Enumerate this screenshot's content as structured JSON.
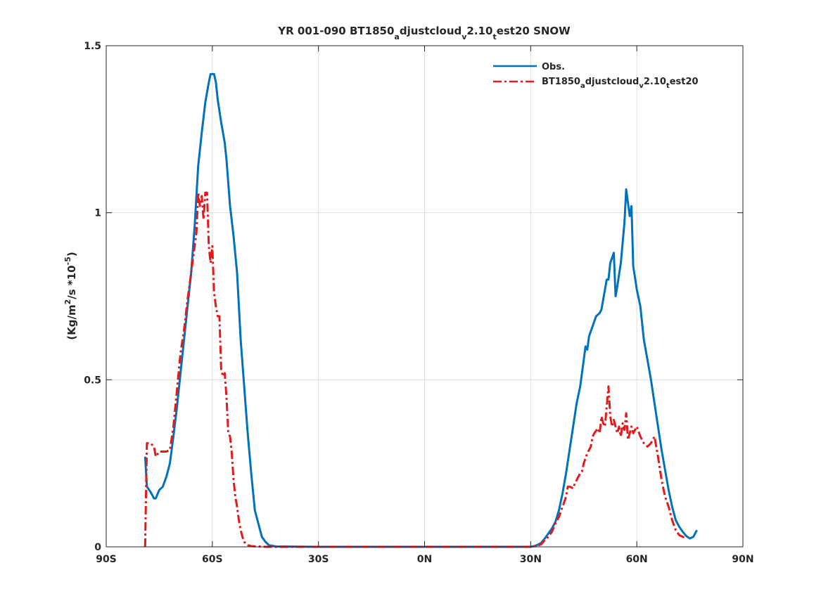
{
  "chart_data": {
    "type": "line",
    "title": {
      "prefix": "YR 001-090 BT1850",
      "sub_a": "a",
      "mid1": "djustcloud",
      "sub_v": "v",
      "mid2": "2.10",
      "sub_t": "t",
      "suffix": "est20 SNOW"
    },
    "ylabel": {
      "p1": "(Kg/m",
      "sup1": "2",
      "p2": "/s *10",
      "sup2": "-5",
      "p3": ")"
    },
    "xlabel": "",
    "xlim": [
      -90,
      90
    ],
    "ylim": [
      0,
      1.5
    ],
    "x_ticks": [
      {
        "value": -90,
        "label": "90S"
      },
      {
        "value": -60,
        "label": "60S"
      },
      {
        "value": -30,
        "label": "30S"
      },
      {
        "value": 0,
        "label": "0N"
      },
      {
        "value": 30,
        "label": "30N"
      },
      {
        "value": 60,
        "label": "60N"
      },
      {
        "value": 90,
        "label": "90N"
      }
    ],
    "y_ticks": [
      {
        "value": 0,
        "label": "0"
      },
      {
        "value": 0.5,
        "label": "0.5"
      },
      {
        "value": 1,
        "label": "1"
      },
      {
        "value": 1.5,
        "label": "1.5"
      }
    ],
    "grid": true,
    "legend_position": "top-right",
    "series": [
      {
        "name": "Obs.",
        "color": "#0072bd",
        "style": "solid",
        "points": [
          [
            -79,
            0.27
          ],
          [
            -78.5,
            0.18
          ],
          [
            -77.5,
            0.165
          ],
          [
            -76.5,
            0.145
          ],
          [
            -76,
            0.145
          ],
          [
            -75,
            0.17
          ],
          [
            -74,
            0.18
          ],
          [
            -73,
            0.21
          ],
          [
            -72,
            0.25
          ],
          [
            -71,
            0.33
          ],
          [
            -70,
            0.42
          ],
          [
            -69,
            0.52
          ],
          [
            -68,
            0.62
          ],
          [
            -67,
            0.72
          ],
          [
            -66,
            0.82
          ],
          [
            -65,
            0.96
          ],
          [
            -64,
            1.14
          ],
          [
            -63,
            1.24
          ],
          [
            -62,
            1.33
          ],
          [
            -61,
            1.39
          ],
          [
            -60.5,
            1.415
          ],
          [
            -59.5,
            1.415
          ],
          [
            -59,
            1.39
          ],
          [
            -58.5,
            1.34
          ],
          [
            -57.5,
            1.27
          ],
          [
            -56.5,
            1.21
          ],
          [
            -56,
            1.16
          ],
          [
            -55,
            1.02
          ],
          [
            -54,
            0.93
          ],
          [
            -53,
            0.82
          ],
          [
            -52,
            0.62
          ],
          [
            -51,
            0.48
          ],
          [
            -50,
            0.34
          ],
          [
            -49,
            0.22
          ],
          [
            -48,
            0.11
          ],
          [
            -47,
            0.07
          ],
          [
            -46,
            0.03
          ],
          [
            -45,
            0.015
          ],
          [
            -44,
            0.005
          ],
          [
            -42,
            0.001
          ],
          [
            -30,
            0
          ],
          [
            0,
            0
          ],
          [
            30,
            0
          ],
          [
            31,
            0.002
          ],
          [
            32,
            0.006
          ],
          [
            33,
            0.012
          ],
          [
            34,
            0.025
          ],
          [
            35,
            0.04
          ],
          [
            36,
            0.055
          ],
          [
            37,
            0.075
          ],
          [
            38,
            0.11
          ],
          [
            39,
            0.16
          ],
          [
            40,
            0.22
          ],
          [
            41,
            0.29
          ],
          [
            42,
            0.36
          ],
          [
            43,
            0.43
          ],
          [
            44,
            0.48
          ],
          [
            45,
            0.56
          ],
          [
            45.5,
            0.6
          ],
          [
            46,
            0.59
          ],
          [
            46.5,
            0.63
          ],
          [
            47.5,
            0.66
          ],
          [
            48.5,
            0.69
          ],
          [
            49.5,
            0.7
          ],
          [
            50,
            0.71
          ],
          [
            50.5,
            0.74
          ],
          [
            51.5,
            0.8
          ],
          [
            52,
            0.8
          ],
          [
            52.5,
            0.85
          ],
          [
            53.5,
            0.88
          ],
          [
            54,
            0.75
          ],
          [
            54.5,
            0.78
          ],
          [
            55.5,
            0.85
          ],
          [
            56.5,
            0.97
          ],
          [
            57,
            1.07
          ],
          [
            58,
            0.99
          ],
          [
            58.5,
            1.02
          ],
          [
            59,
            0.84
          ],
          [
            60,
            0.77
          ],
          [
            61,
            0.72
          ],
          [
            62,
            0.62
          ],
          [
            63,
            0.56
          ],
          [
            64,
            0.5
          ],
          [
            65,
            0.43
          ],
          [
            66,
            0.36
          ],
          [
            67,
            0.29
          ],
          [
            68,
            0.23
          ],
          [
            69,
            0.17
          ],
          [
            70,
            0.12
          ],
          [
            71,
            0.08
          ],
          [
            72,
            0.06
          ],
          [
            73,
            0.045
          ],
          [
            74,
            0.032
          ],
          [
            75,
            0.025
          ],
          [
            76,
            0.03
          ],
          [
            77,
            0.05
          ]
        ]
      },
      {
        "name": "BT1850adjustcloudv2.10test20",
        "legend_parts": {
          "prefix": "BT1850",
          "sub_a": "a",
          "mid1": "djustcloud",
          "sub_v": "v",
          "mid2": "2.10",
          "sub_t": "t",
          "suffix": "est20"
        },
        "color": "#e31a1c",
        "style": "dashdot",
        "points": [
          [
            -79,
            0
          ],
          [
            -78.5,
            0.31
          ],
          [
            -77.5,
            0.31
          ],
          [
            -76.5,
            0.3
          ],
          [
            -76,
            0.27
          ],
          [
            -75,
            0.285
          ],
          [
            -74,
            0.285
          ],
          [
            -73,
            0.285
          ],
          [
            -72,
            0.29
          ],
          [
            -71,
            0.36
          ],
          [
            -70,
            0.47
          ],
          [
            -69,
            0.58
          ],
          [
            -68,
            0.65
          ],
          [
            -67,
            0.74
          ],
          [
            -66,
            0.82
          ],
          [
            -65,
            0.9
          ],
          [
            -64.5,
            0.94
          ],
          [
            -64,
            1.06
          ],
          [
            -63.5,
            1.02
          ],
          [
            -63,
            1.05
          ],
          [
            -62.5,
            0.98
          ],
          [
            -62,
            1.06
          ],
          [
            -61.5,
            1.06
          ],
          [
            -61,
            0.9
          ],
          [
            -60.5,
            0.85
          ],
          [
            -60,
            0.9
          ],
          [
            -59.5,
            0.76
          ],
          [
            -59,
            0.72
          ],
          [
            -58.5,
            0.69
          ],
          [
            -58,
            0.69
          ],
          [
            -57.5,
            0.53
          ],
          [
            -57,
            0.51
          ],
          [
            -56.5,
            0.52
          ],
          [
            -56,
            0.45
          ],
          [
            -55.5,
            0.34
          ],
          [
            -55,
            0.33
          ],
          [
            -54.5,
            0.28
          ],
          [
            -54,
            0.2
          ],
          [
            -53.5,
            0.15
          ],
          [
            -53,
            0.12
          ],
          [
            -52.5,
            0.08
          ],
          [
            -52,
            0.05
          ],
          [
            -51.5,
            0.03
          ],
          [
            -51,
            0.015
          ],
          [
            -50,
            0.005
          ],
          [
            -49,
            0.002
          ],
          [
            -45,
            0
          ],
          [
            0,
            0
          ],
          [
            30,
            0
          ],
          [
            32,
            0.003
          ],
          [
            33,
            0.008
          ],
          [
            34,
            0.02
          ],
          [
            35,
            0.03
          ],
          [
            36,
            0.045
          ],
          [
            37,
            0.07
          ],
          [
            38,
            0.09
          ],
          [
            39,
            0.12
          ],
          [
            40,
            0.15
          ],
          [
            40.5,
            0.18
          ],
          [
            41,
            0.18
          ],
          [
            42,
            0.175
          ],
          [
            42.5,
            0.19
          ],
          [
            43,
            0.2
          ],
          [
            44,
            0.22
          ],
          [
            44.5,
            0.225
          ],
          [
            45,
            0.25
          ],
          [
            46,
            0.28
          ],
          [
            47,
            0.3
          ],
          [
            47.5,
            0.33
          ],
          [
            48,
            0.34
          ],
          [
            49,
            0.355
          ],
          [
            49.5,
            0.34
          ],
          [
            50,
            0.39
          ],
          [
            50.5,
            0.37
          ],
          [
            51,
            0.36
          ],
          [
            52,
            0.48
          ],
          [
            52.5,
            0.39
          ],
          [
            53,
            0.36
          ],
          [
            53.5,
            0.38
          ],
          [
            54,
            0.36
          ],
          [
            54.5,
            0.34
          ],
          [
            55,
            0.36
          ],
          [
            55.5,
            0.33
          ],
          [
            56,
            0.37
          ],
          [
            56.5,
            0.35
          ],
          [
            57,
            0.4
          ],
          [
            57.5,
            0.32
          ],
          [
            58,
            0.34
          ],
          [
            58.5,
            0.36
          ],
          [
            59,
            0.34
          ],
          [
            60,
            0.36
          ],
          [
            61,
            0.33
          ],
          [
            62,
            0.31
          ],
          [
            63,
            0.3
          ],
          [
            64,
            0.31
          ],
          [
            65,
            0.33
          ],
          [
            66,
            0.27
          ],
          [
            67,
            0.2
          ],
          [
            68,
            0.15
          ],
          [
            69,
            0.12
          ],
          [
            70,
            0.08
          ],
          [
            71,
            0.05
          ],
          [
            72,
            0.035
          ],
          [
            73,
            0.03
          ],
          [
            74,
            0.025
          ]
        ]
      }
    ]
  }
}
